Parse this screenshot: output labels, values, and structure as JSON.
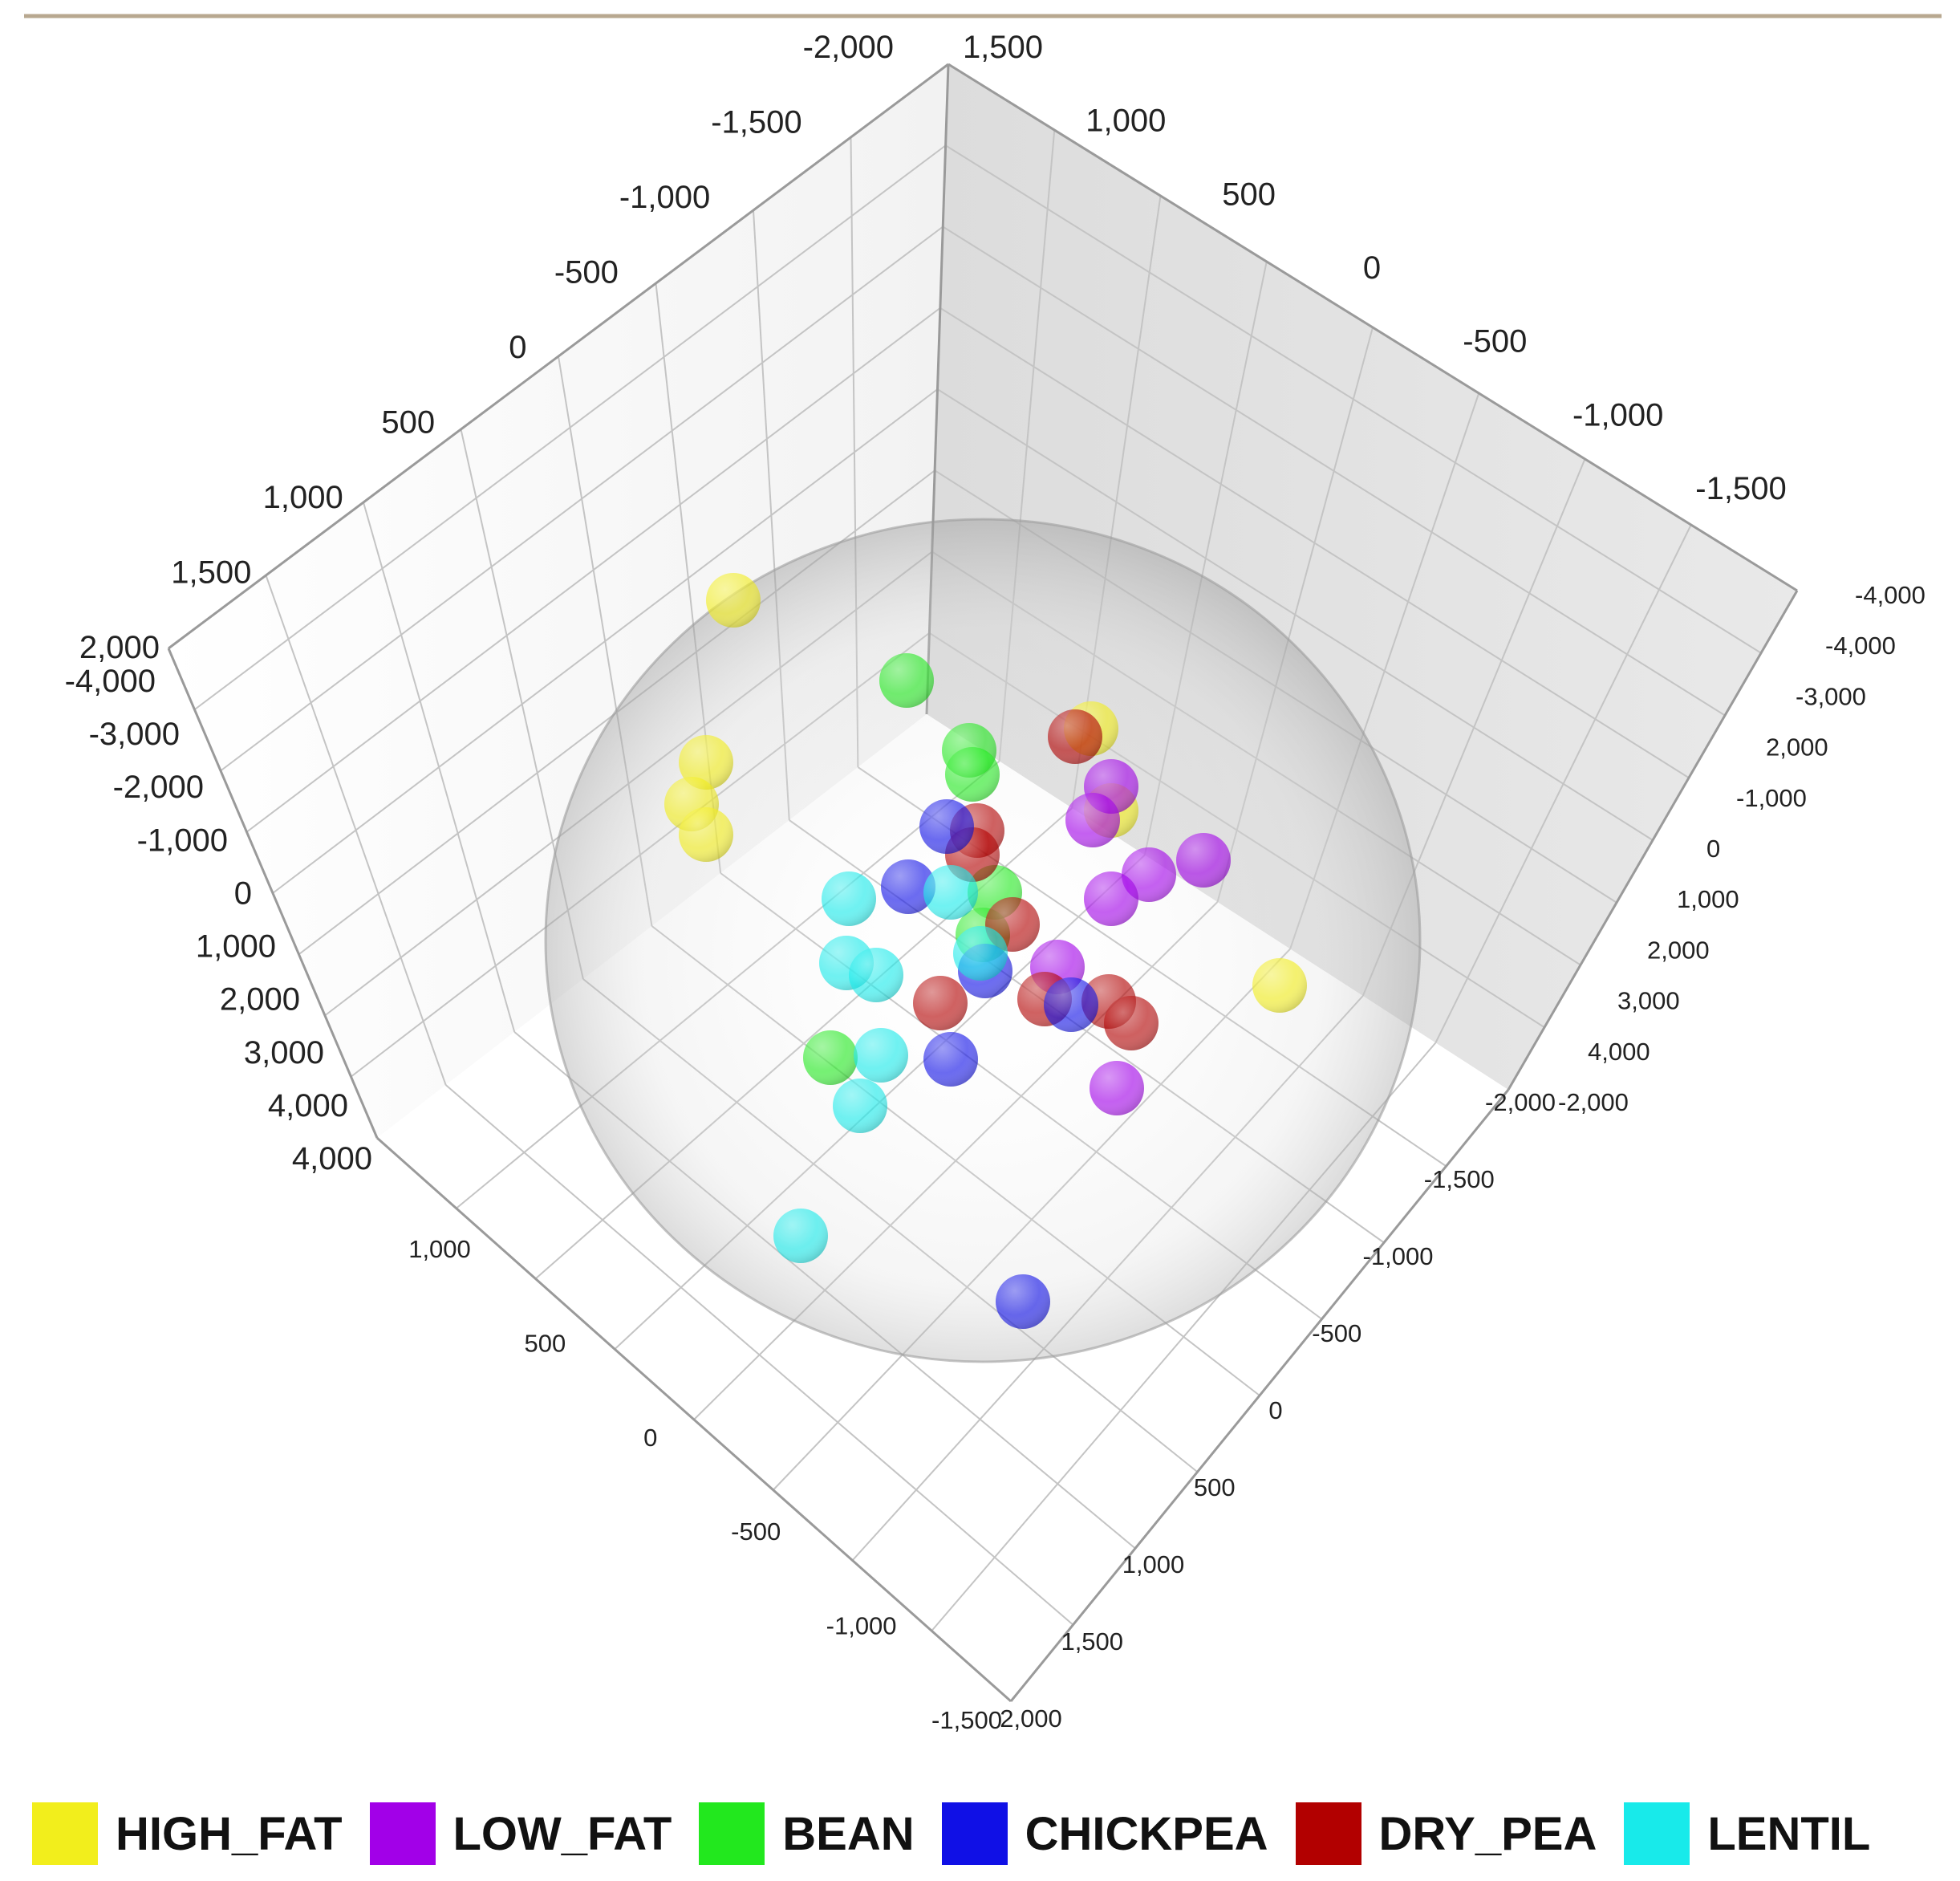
{
  "chart_data": {
    "type": "scatter",
    "title": "",
    "projection": "3d",
    "axes": {
      "back_left_top": [
        "-2,000",
        "-1,500",
        "-1,000",
        "-500",
        "0",
        "500",
        "1,000",
        "1,500",
        "2,000"
      ],
      "back_left_vertical": [
        "-4,000",
        "-3,000",
        "-2,000",
        "-1,000",
        "0",
        "1,000",
        "2,000",
        "3,000",
        "4,000",
        "4,000"
      ],
      "back_right_top": [
        "1,500",
        "1,000",
        "500",
        "0",
        "-500",
        "-1,000",
        "-1,500"
      ],
      "back_right_vertical": [
        "-4,000",
        "-4,000",
        "-3,000",
        "2,000",
        "-1,000",
        "0",
        "1,000",
        "2,000",
        "3,000",
        "4,000",
        "-2,000"
      ],
      "front_right": [
        "-2,000",
        "-1,500",
        "-1,000",
        "-500",
        "0",
        "500",
        "1,000",
        "1,500",
        "2,000"
      ],
      "front_left": [
        "1,000",
        "500",
        "0",
        "-500",
        "-1,000",
        "-1,500"
      ]
    },
    "series": [
      {
        "name": "HIGH_FAT",
        "color": "#f2ee1c"
      },
      {
        "name": "LOW_FAT",
        "color": "#a200e8"
      },
      {
        "name": "BEAN",
        "color": "#22e81e"
      },
      {
        "name": "CHICKPEA",
        "color": "#1010e6"
      },
      {
        "name": "DRY_PEA",
        "color": "#b20000"
      },
      {
        "name": "LENTIL",
        "color": "#18eaea"
      }
    ],
    "legend_position": "bottom",
    "grid": true
  }
}
